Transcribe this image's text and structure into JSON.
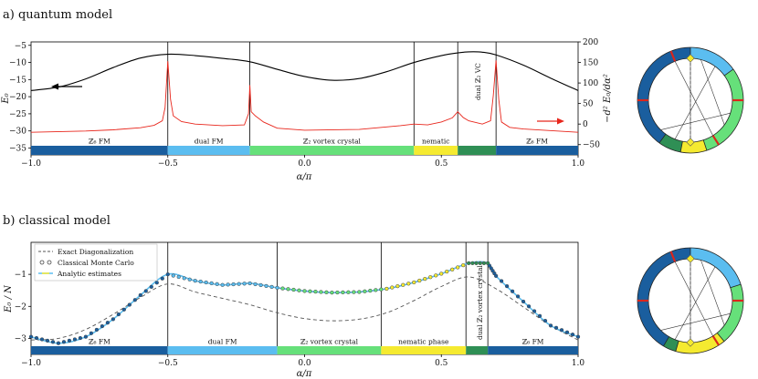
{
  "phase_colors": {
    "z6fm": "#1a5e9e",
    "dualfm": "#5bbdf0",
    "vortex": "#66e07a",
    "nematic": "#f5ea30",
    "dualvc": "#2f8f55"
  },
  "quantum_panel": {
    "title": "a) quantum model",
    "xlabel": "α/π",
    "ylabel_left": "E₀",
    "ylabel_right": "−d² E₀/dα²",
    "xticks": [
      "−1.0",
      "−0.5",
      "0.0",
      "0.5",
      "1.0"
    ],
    "yticks_left": [
      "−5",
      "−10",
      "−15",
      "−20",
      "−25",
      "−30",
      "−35"
    ],
    "yticks_right": [
      "200",
      "150",
      "100",
      "50",
      "0",
      "−50"
    ],
    "phases": [
      {
        "label": "ℤ₆ FM",
        "from": -1.0,
        "to": -0.5,
        "color": "#1a5e9e"
      },
      {
        "label": "dual FM",
        "from": -0.5,
        "to": -0.2,
        "color": "#5bbdf0"
      },
      {
        "label": "ℤ₂ vortex crystal",
        "from": -0.2,
        "to": 0.4,
        "color": "#66e07a"
      },
      {
        "label": "nematic",
        "from": 0.4,
        "to": 0.56,
        "color": "#f5ea30"
      },
      {
        "label": "",
        "from": 0.56,
        "to": 0.7,
        "color": "#2f8f55"
      },
      {
        "label": "ℤ₆ FM",
        "from": 0.7,
        "to": 1.0,
        "color": "#1a5e9e"
      }
    ],
    "vertical_label": "dual ℤ₂ VC",
    "boundaries": [
      -0.5,
      -0.2,
      0.4,
      0.56,
      0.7
    ]
  },
  "classical_panel": {
    "title": "b) classical model",
    "xlabel": "α/π",
    "ylabel": "E₀ / N",
    "xticks": [
      "−1.0",
      "−0.5",
      "0.0",
      "0.5",
      "1.0"
    ],
    "yticks": [
      "−1",
      "−2",
      "−3"
    ],
    "legend": [
      "Exact Diagonalization",
      "Classical Monte Carlo",
      "Analytic estimates"
    ],
    "phases": [
      {
        "label": "ℤ₆ FM",
        "from": -1.0,
        "to": -0.5,
        "color": "#1a5e9e"
      },
      {
        "label": "dual FM",
        "from": -0.5,
        "to": -0.1,
        "color": "#5bbdf0"
      },
      {
        "label": "ℤ₂ vortex crystal",
        "from": -0.1,
        "to": 0.28,
        "color": "#66e07a"
      },
      {
        "label": "nematic phase",
        "from": 0.28,
        "to": 0.59,
        "color": "#f5ea30"
      },
      {
        "label": "",
        "from": 0.59,
        "to": 0.67,
        "color": "#2f8f55"
      },
      {
        "label": "ℤ₆ FM",
        "from": 0.67,
        "to": 1.0,
        "color": "#1a5e9e"
      }
    ],
    "vertical_label": "dual ℤ₂ vortex crystal",
    "boundaries": [
      -0.5,
      -0.1,
      0.28,
      0.59,
      0.67
    ]
  },
  "chart_data": [
    {
      "type": "line",
      "xlim": [
        -1.0,
        1.0
      ],
      "ylim_left": [
        -37,
        -4
      ],
      "ylim_right": [
        -75,
        200
      ],
      "series": [
        {
          "axis": "left",
          "color": "#000000",
          "x": [
            -1.0,
            -0.9,
            -0.8,
            -0.7,
            -0.6,
            -0.5,
            -0.4,
            -0.3,
            -0.2,
            -0.1,
            0.0,
            0.1,
            0.2,
            0.3,
            0.4,
            0.5,
            0.56,
            0.6,
            0.65,
            0.7,
            0.8,
            0.9,
            1.0
          ],
          "y": [
            -18.2,
            -17.2,
            -14.8,
            -11.5,
            -8.7,
            -7.6,
            -8.0,
            -8.8,
            -9.8,
            -12.0,
            -14.1,
            -15.2,
            -14.7,
            -12.7,
            -10.0,
            -8.0,
            -7.2,
            -6.9,
            -7.0,
            -7.8,
            -10.8,
            -14.6,
            -18.2
          ]
        },
        {
          "axis": "right",
          "color": "#e8261c",
          "x": [
            -1.0,
            -0.8,
            -0.7,
            -0.6,
            -0.55,
            -0.52,
            -0.51,
            -0.5,
            -0.49,
            -0.48,
            -0.45,
            -0.4,
            -0.3,
            -0.22,
            -0.205,
            -0.2,
            -0.195,
            -0.18,
            -0.15,
            -0.1,
            0.0,
            0.2,
            0.35,
            0.4,
            0.45,
            0.5,
            0.54,
            0.56,
            0.58,
            0.6,
            0.65,
            0.68,
            0.69,
            0.7,
            0.71,
            0.72,
            0.75,
            0.8,
            1.0
          ],
          "y": [
            -20,
            -17,
            -14,
            -9,
            -3,
            8,
            40,
            153,
            60,
            20,
            6,
            0,
            -4,
            -2,
            25,
            95,
            30,
            20,
            5,
            -10,
            -15,
            -13,
            -4,
            0,
            -2,
            5,
            15,
            30,
            16,
            8,
            0,
            8,
            70,
            155,
            60,
            5,
            -8,
            -12,
            -20
          ]
        }
      ]
    },
    {
      "type": "line",
      "xlim": [
        -1.0,
        1.0
      ],
      "ylim": [
        -3.5,
        0.0
      ],
      "series": [
        {
          "name": "Exact Diagonalization",
          "style": "dashed",
          "color": "#555555",
          "x": [
            -1.0,
            -0.9,
            -0.8,
            -0.7,
            -0.6,
            -0.5,
            -0.4,
            -0.3,
            -0.2,
            -0.1,
            0.0,
            0.1,
            0.2,
            0.3,
            0.4,
            0.5,
            0.6,
            0.7,
            0.8,
            0.9,
            1.0
          ],
          "y": [
            -3.05,
            -3.0,
            -2.72,
            -2.25,
            -1.72,
            -1.3,
            -1.55,
            -1.75,
            -1.95,
            -2.2,
            -2.38,
            -2.45,
            -2.4,
            -2.2,
            -1.82,
            -1.38,
            -1.08,
            -1.45,
            -2.02,
            -2.6,
            -3.05
          ]
        },
        {
          "name": "Classical Monte Carlo",
          "style": "markers",
          "color": "#444444",
          "x": [
            -1.0,
            -0.9,
            -0.8,
            -0.7,
            -0.6,
            -0.5,
            -0.4,
            -0.3,
            -0.2,
            -0.1,
            0.0,
            0.1,
            0.2,
            0.3,
            0.4,
            0.5,
            0.6,
            0.67,
            0.7,
            0.8,
            0.9,
            1.0
          ],
          "y": [
            -2.95,
            -3.15,
            -2.95,
            -2.4,
            -1.65,
            -1.0,
            -1.2,
            -1.33,
            -1.28,
            -1.42,
            -1.52,
            -1.57,
            -1.55,
            -1.45,
            -1.25,
            -0.98,
            -0.65,
            -0.65,
            -1.05,
            -1.85,
            -2.6,
            -2.95
          ]
        },
        {
          "name": "Analytic estimates",
          "style": "solid",
          "color": "#5bbdf0",
          "x": [
            -1.0,
            -0.9,
            -0.8,
            -0.7,
            -0.6,
            -0.5,
            -0.4,
            -0.3,
            -0.2,
            -0.1,
            0.0,
            0.1,
            0.2,
            0.3,
            0.4,
            0.5,
            0.6,
            0.67,
            0.7,
            0.8,
            0.9,
            1.0
          ],
          "y": [
            -2.95,
            -3.15,
            -2.95,
            -2.4,
            -1.65,
            -1.0,
            -1.2,
            -1.33,
            -1.28,
            -1.42,
            -1.52,
            -1.57,
            -1.55,
            -1.45,
            -1.25,
            -0.98,
            -0.65,
            -0.65,
            -1.05,
            -1.85,
            -2.6,
            -2.95
          ]
        }
      ]
    }
  ]
}
